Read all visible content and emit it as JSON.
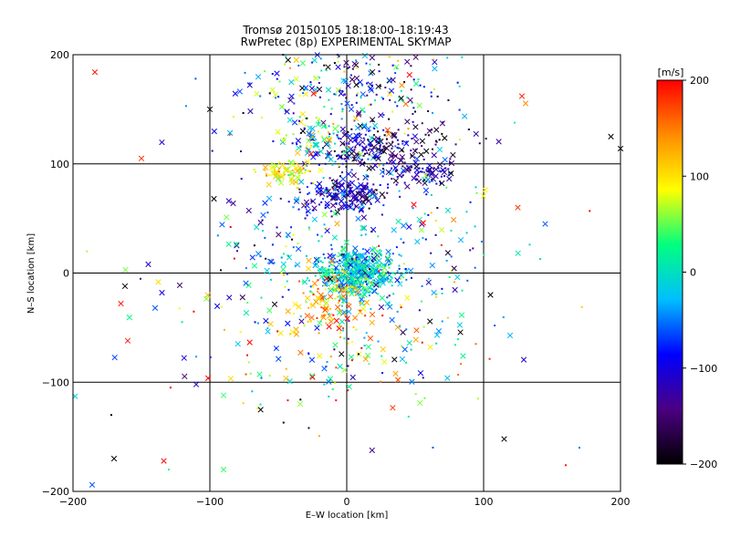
{
  "chart_data": {
    "type": "scatter",
    "title": "Tromsø 20150105 18:18:00–18:19:43",
    "subtitle": "RwPretec (8p) EXPERIMENTAL SKYMAP",
    "xlabel": "E–W location [km]",
    "ylabel": "N–S location [km]",
    "xlim": [
      -200,
      200
    ],
    "ylim": [
      -200,
      200
    ],
    "xticks": [
      -200,
      -100,
      0,
      100,
      200
    ],
    "yticks": [
      -200,
      -100,
      0,
      100,
      200
    ],
    "grid": true,
    "marker_styles": [
      "cross",
      "dot"
    ],
    "colorbar": {
      "label": "[m/s]",
      "range": [
        -200,
        200
      ],
      "ticks": [
        -200,
        -100,
        0,
        100,
        200
      ],
      "position": "right",
      "colormap": [
        "#000000",
        "#4b0082",
        "#0000ff",
        "#00bfff",
        "#00ff7f",
        "#ffff00",
        "#ff8c00",
        "#ff0000"
      ]
    },
    "clusters": [
      {
        "center": [
          8,
          0
        ],
        "spread": [
          14,
          12
        ],
        "velocity": -10,
        "velocity_spread": 40,
        "count": 520
      },
      {
        "center": [
          -2,
          72
        ],
        "spread": [
          16,
          8
        ],
        "velocity": -110,
        "velocity_spread": 40,
        "count": 190
      },
      {
        "center": [
          12,
          112
        ],
        "spread": [
          20,
          12
        ],
        "velocity": -120,
        "velocity_spread": 50,
        "count": 170
      },
      {
        "center": [
          55,
          92
        ],
        "spread": [
          14,
          7
        ],
        "velocity": -120,
        "velocity_spread": 40,
        "count": 90
      },
      {
        "center": [
          55,
          120
        ],
        "spread": [
          22,
          14
        ],
        "velocity": -170,
        "velocity_spread": 30,
        "count": 60
      },
      {
        "center": [
          -10,
          -28
        ],
        "spread": [
          12,
          14
        ],
        "velocity": 130,
        "velocity_spread": 40,
        "count": 120
      },
      {
        "center": [
          -45,
          92
        ],
        "spread": [
          10,
          5
        ],
        "velocity": 100,
        "velocity_spread": 25,
        "count": 80
      },
      {
        "center": [
          -22,
          125
        ],
        "spread": [
          16,
          16
        ],
        "velocity": 30,
        "velocity_spread": 60,
        "count": 90
      },
      {
        "center": [
          0,
          170
        ],
        "spread": [
          40,
          22
        ],
        "velocity": -60,
        "velocity_spread": 100,
        "count": 230
      },
      {
        "center": [
          -40,
          20
        ],
        "spread": [
          28,
          36
        ],
        "velocity": -30,
        "velocity_spread": 90,
        "count": 120
      },
      {
        "center": [
          60,
          20
        ],
        "spread": [
          30,
          34
        ],
        "velocity": -20,
        "velocity_spread": 90,
        "count": 100
      },
      {
        "center": [
          0,
          -70
        ],
        "spread": [
          50,
          30
        ],
        "velocity": 40,
        "velocity_spread": 120,
        "count": 140
      },
      {
        "center": [
          0,
          0
        ],
        "spread": [
          110,
          110
        ],
        "velocity": 0,
        "velocity_spread": 140,
        "count": 70
      }
    ],
    "points": [
      {
        "x": -184,
        "y": 184,
        "v": 190,
        "m": "cross"
      },
      {
        "x": -100,
        "y": 150,
        "v": -200,
        "m": "cross"
      },
      {
        "x": -150,
        "y": 105,
        "v": 180,
        "m": "cross"
      },
      {
        "x": -97,
        "y": 68,
        "v": -200,
        "m": "cross"
      },
      {
        "x": -145,
        "y": 8,
        "v": -110,
        "m": "cross"
      },
      {
        "x": -162,
        "y": -12,
        "v": -200,
        "m": "cross"
      },
      {
        "x": -135,
        "y": -18,
        "v": -100,
        "m": "cross"
      },
      {
        "x": -165,
        "y": -28,
        "v": 190,
        "m": "cross"
      },
      {
        "x": -140,
        "y": -32,
        "v": -60,
        "m": "cross"
      },
      {
        "x": -160,
        "y": -62,
        "v": 190,
        "m": "cross"
      },
      {
        "x": -110,
        "y": -102,
        "v": -110,
        "m": "cross"
      },
      {
        "x": -90,
        "y": -112,
        "v": 40,
        "m": "cross"
      },
      {
        "x": -170,
        "y": -170,
        "v": -200,
        "m": "cross"
      },
      {
        "x": -186,
        "y": -194,
        "v": -60,
        "m": "cross"
      },
      {
        "x": -90,
        "y": -180,
        "v": 40,
        "m": "cross"
      },
      {
        "x": 193,
        "y": 125,
        "v": -200,
        "m": "cross"
      },
      {
        "x": 200,
        "y": 114,
        "v": -200,
        "m": "cross"
      },
      {
        "x": 128,
        "y": 162,
        "v": 190,
        "m": "cross"
      },
      {
        "x": 145,
        "y": 45,
        "v": -60,
        "m": "cross"
      },
      {
        "x": 125,
        "y": 60,
        "v": 180,
        "m": "cross"
      },
      {
        "x": 115,
        "y": -152,
        "v": -200,
        "m": "cross"
      },
      {
        "x": 105,
        "y": -20,
        "v": -200,
        "m": "cross"
      },
      {
        "x": 85,
        "y": -76,
        "v": 20,
        "m": "cross"
      },
      {
        "x": 160,
        "y": -176,
        "v": 190,
        "m": "dot"
      },
      {
        "x": 170,
        "y": -160,
        "v": -50,
        "m": "dot"
      },
      {
        "x": -172,
        "y": -130,
        "v": -200,
        "m": "dot"
      },
      {
        "x": -130,
        "y": -180,
        "v": 30,
        "m": "dot"
      }
    ]
  }
}
